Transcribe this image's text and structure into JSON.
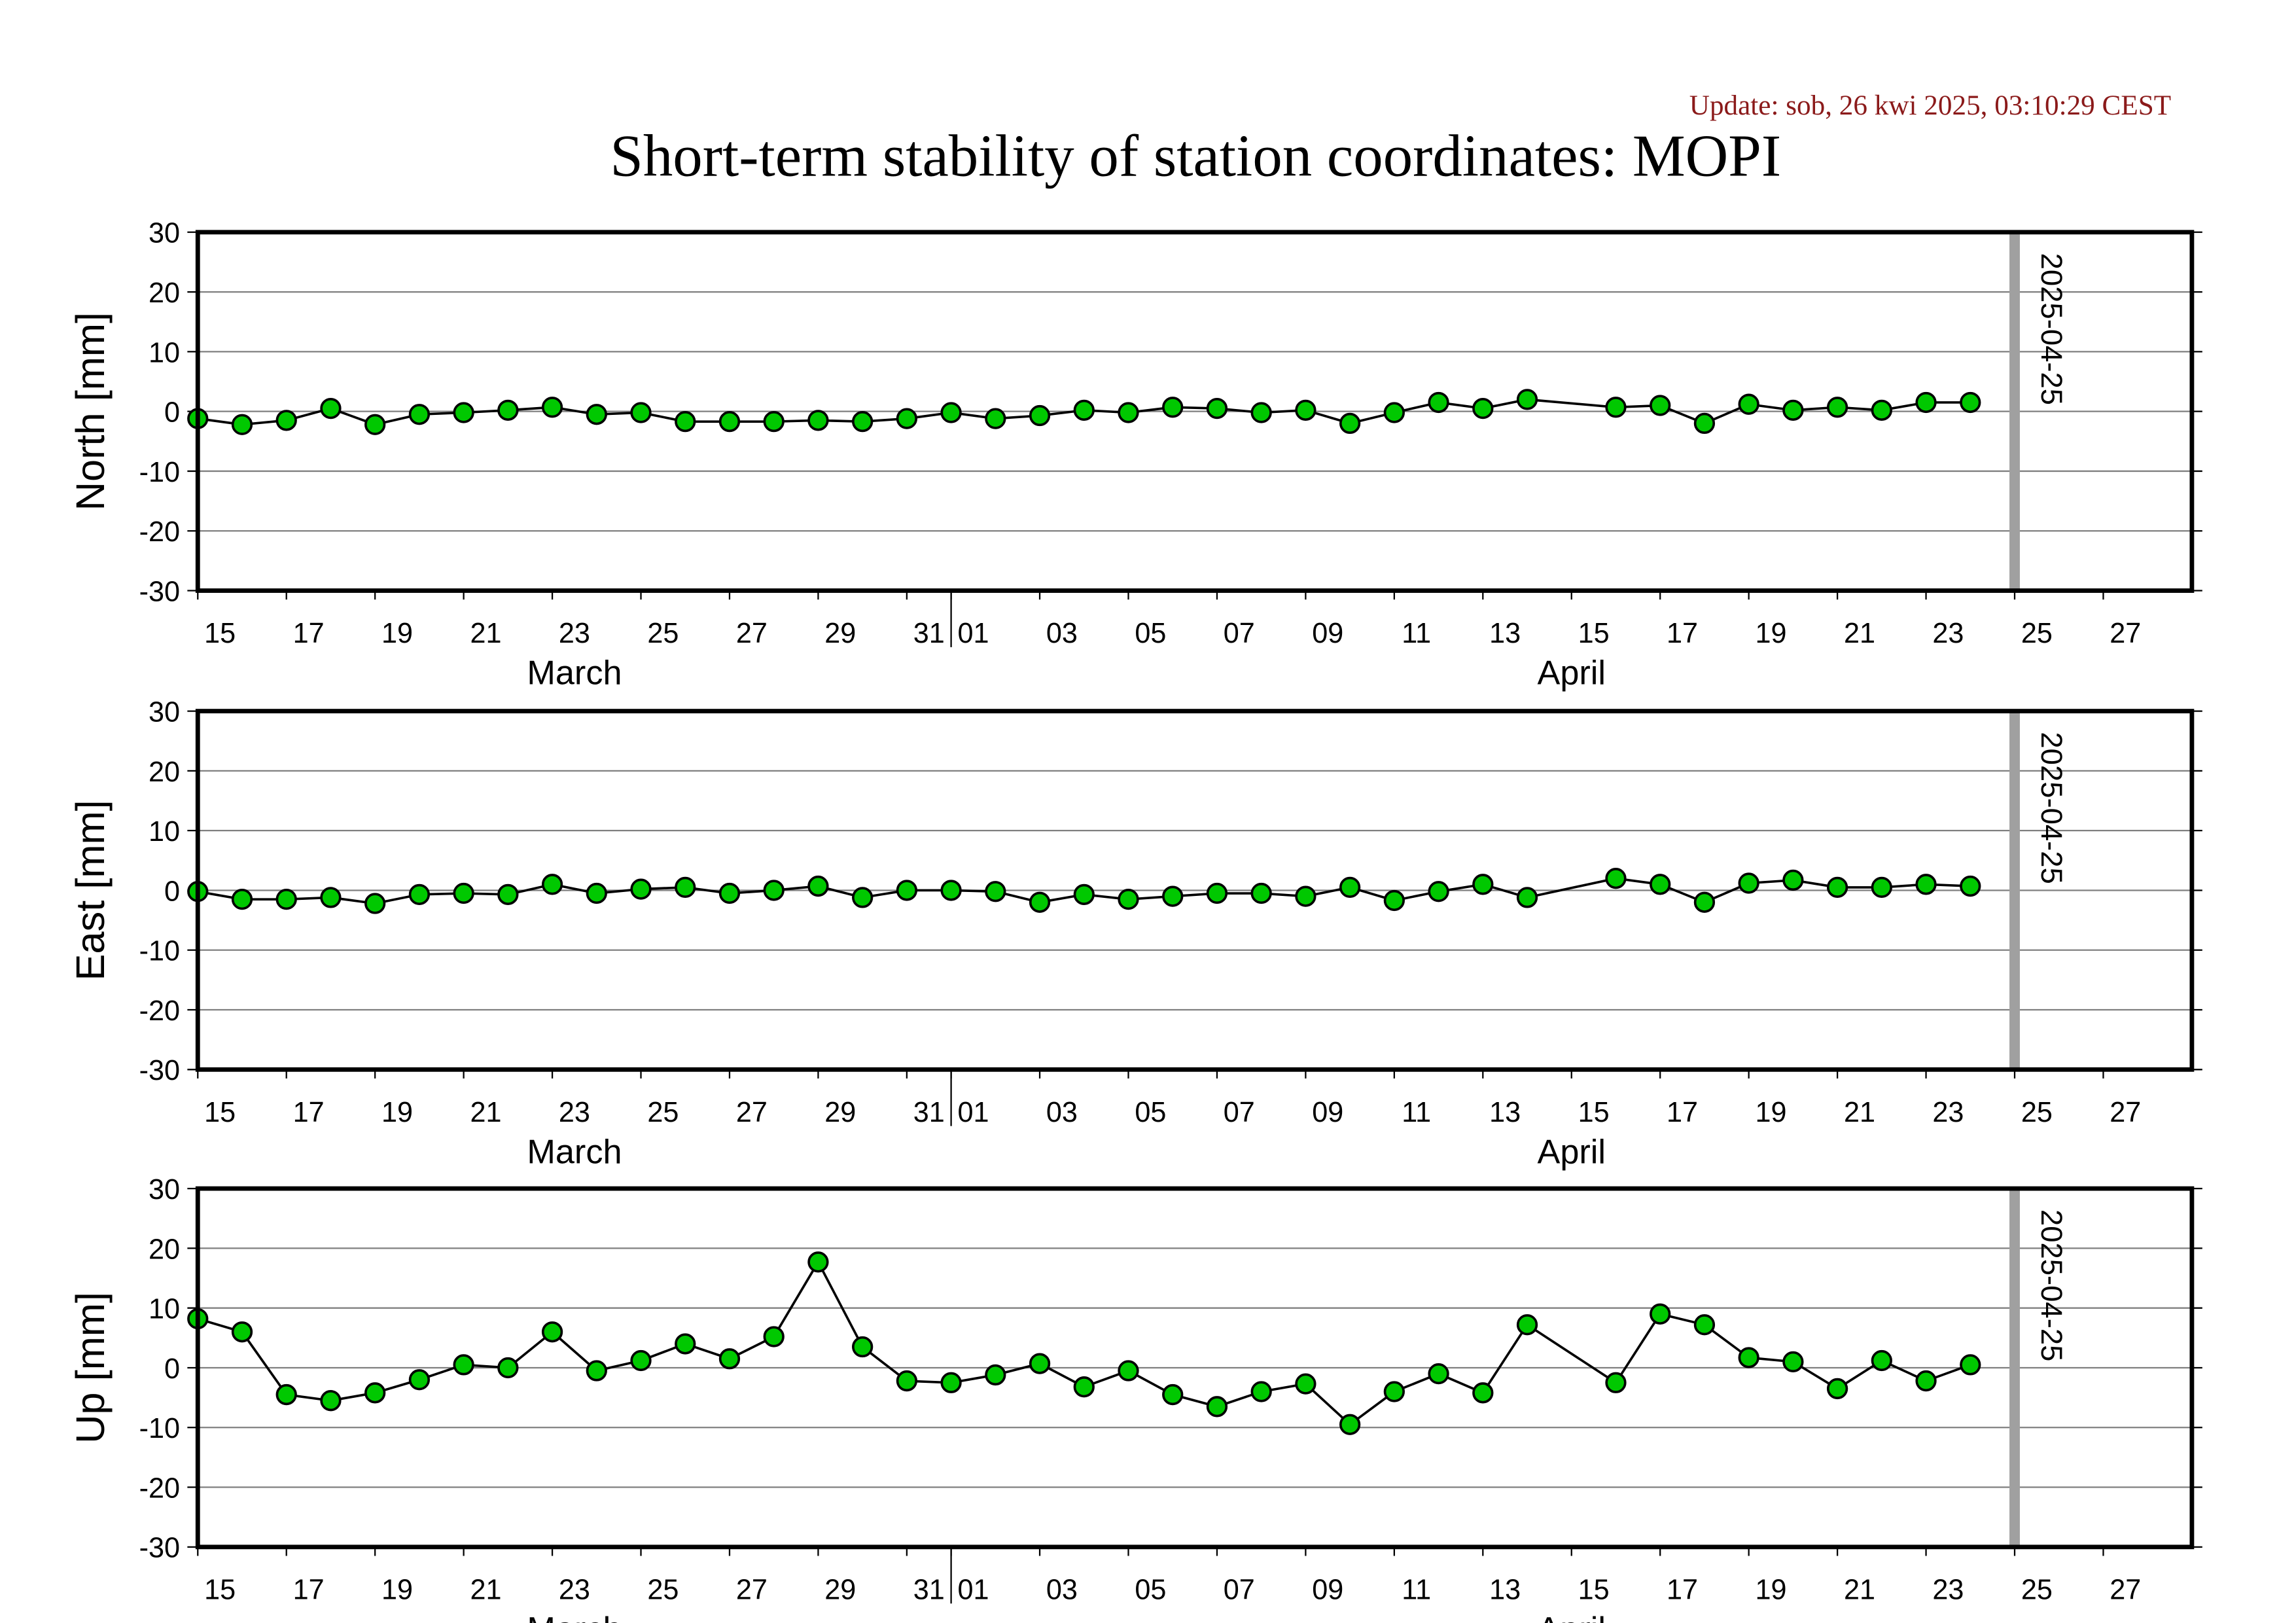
{
  "title": "Short-term stability of station coordinates: MOPI",
  "update": "Update: sob, 26 kwi 2025, 03:10:29 CEST",
  "chart_data": [
    {
      "type": "line",
      "ylabel": "North [mm]",
      "color": "#00c800",
      "x": [
        "2025-03-15",
        "2025-03-16",
        "2025-03-17",
        "2025-03-18",
        "2025-03-19",
        "2025-03-20",
        "2025-03-21",
        "2025-03-22",
        "2025-03-23",
        "2025-03-24",
        "2025-03-25",
        "2025-03-26",
        "2025-03-27",
        "2025-03-28",
        "2025-03-29",
        "2025-03-30",
        "2025-03-31",
        "2025-04-01",
        "2025-04-02",
        "2025-04-03",
        "2025-04-04",
        "2025-04-05",
        "2025-04-06",
        "2025-04-07",
        "2025-04-08",
        "2025-04-09",
        "2025-04-10",
        "2025-04-11",
        "2025-04-12",
        "2025-04-13",
        "2025-04-14",
        "2025-04-16",
        "2025-04-17",
        "2025-04-18",
        "2025-04-19",
        "2025-04-20",
        "2025-04-21",
        "2025-04-22",
        "2025-04-23",
        "2025-04-24"
      ],
      "values": [
        -1.2,
        -2.2,
        -1.5,
        0.5,
        -2.2,
        -0.5,
        -0.2,
        0.2,
        0.7,
        -0.5,
        -0.2,
        -1.7,
        -1.7,
        -1.7,
        -1.5,
        -1.7,
        -1.2,
        -0.2,
        -1.2,
        -0.7,
        0.2,
        -0.2,
        0.7,
        0.5,
        -0.2,
        0.2,
        -2.0,
        -0.2,
        1.5,
        0.5,
        2.0,
        0.7,
        1.0,
        -2.0,
        1.2,
        0.2,
        0.7,
        0.2,
        1.5,
        1.5
      ],
      "xlim": [
        "2025-03-15",
        "2025-04-29"
      ],
      "xticks": [
        {
          "value": "2025-03-15",
          "label": "15"
        },
        {
          "value": "2025-03-17",
          "label": "17"
        },
        {
          "value": "2025-03-19",
          "label": "19"
        },
        {
          "value": "2025-03-21",
          "label": "21"
        },
        {
          "value": "2025-03-23",
          "label": "23"
        },
        {
          "value": "2025-03-25",
          "label": "25"
        },
        {
          "value": "2025-03-27",
          "label": "27"
        },
        {
          "value": "2025-03-29",
          "label": "29"
        },
        {
          "value": "2025-03-31",
          "label": "31"
        },
        {
          "value": "2025-04-01",
          "label": "01"
        },
        {
          "value": "2025-04-03",
          "label": "03"
        },
        {
          "value": "2025-04-05",
          "label": "05"
        },
        {
          "value": "2025-04-07",
          "label": "07"
        },
        {
          "value": "2025-04-09",
          "label": "09"
        },
        {
          "value": "2025-04-11",
          "label": "11"
        },
        {
          "value": "2025-04-13",
          "label": "13"
        },
        {
          "value": "2025-04-15",
          "label": "15"
        },
        {
          "value": "2025-04-17",
          "label": "17"
        },
        {
          "value": "2025-04-19",
          "label": "19"
        },
        {
          "value": "2025-04-21",
          "label": "21"
        },
        {
          "value": "2025-04-23",
          "label": "23"
        },
        {
          "value": "2025-04-25",
          "label": "25"
        },
        {
          "value": "2025-04-27",
          "label": "27"
        }
      ],
      "months": [
        {
          "value": "2025-03-01",
          "label": "March"
        },
        {
          "value": "2025-04-01",
          "label": "April"
        }
      ],
      "vline": "2025-04-25",
      "ylim": [
        -30,
        30
      ],
      "yticks": [
        -30,
        -20,
        -10,
        0,
        10,
        20,
        30
      ],
      "grid": true
    },
    {
      "type": "line",
      "ylabel": "East [mm]",
      "color": "#00c800",
      "x": [
        "2025-03-15",
        "2025-03-16",
        "2025-03-17",
        "2025-03-18",
        "2025-03-19",
        "2025-03-20",
        "2025-03-21",
        "2025-03-22",
        "2025-03-23",
        "2025-03-24",
        "2025-03-25",
        "2025-03-26",
        "2025-03-27",
        "2025-03-28",
        "2025-03-29",
        "2025-03-30",
        "2025-03-31",
        "2025-04-01",
        "2025-04-02",
        "2025-04-03",
        "2025-04-04",
        "2025-04-05",
        "2025-04-06",
        "2025-04-07",
        "2025-04-08",
        "2025-04-09",
        "2025-04-10",
        "2025-04-11",
        "2025-04-12",
        "2025-04-13",
        "2025-04-14",
        "2025-04-16",
        "2025-04-17",
        "2025-04-18",
        "2025-04-19",
        "2025-04-20",
        "2025-04-21",
        "2025-04-22",
        "2025-04-23",
        "2025-04-24"
      ],
      "values": [
        -0.2,
        -1.5,
        -1.5,
        -1.2,
        -2.2,
        -0.7,
        -0.5,
        -0.7,
        1.0,
        -0.5,
        0.2,
        0.5,
        -0.5,
        0,
        0.7,
        -1.2,
        0,
        0,
        -0.2,
        -2.0,
        -0.7,
        -1.5,
        -1.0,
        -0.5,
        -0.5,
        -1.0,
        0.5,
        -1.7,
        -0.2,
        1.0,
        -1.2,
        2.0,
        1.0,
        -2.0,
        1.2,
        1.7,
        0.5,
        0.5,
        1.0,
        0.7
      ],
      "xlim": [
        "2025-03-15",
        "2025-04-29"
      ],
      "xticks": [
        {
          "value": "2025-03-15",
          "label": "15"
        },
        {
          "value": "2025-03-17",
          "label": "17"
        },
        {
          "value": "2025-03-19",
          "label": "19"
        },
        {
          "value": "2025-03-21",
          "label": "21"
        },
        {
          "value": "2025-03-23",
          "label": "23"
        },
        {
          "value": "2025-03-25",
          "label": "25"
        },
        {
          "value": "2025-03-27",
          "label": "27"
        },
        {
          "value": "2025-03-29",
          "label": "29"
        },
        {
          "value": "2025-03-31",
          "label": "31"
        },
        {
          "value": "2025-04-01",
          "label": "01"
        },
        {
          "value": "2025-04-03",
          "label": "03"
        },
        {
          "value": "2025-04-05",
          "label": "05"
        },
        {
          "value": "2025-04-07",
          "label": "07"
        },
        {
          "value": "2025-04-09",
          "label": "09"
        },
        {
          "value": "2025-04-11",
          "label": "11"
        },
        {
          "value": "2025-04-13",
          "label": "13"
        },
        {
          "value": "2025-04-15",
          "label": "15"
        },
        {
          "value": "2025-04-17",
          "label": "17"
        },
        {
          "value": "2025-04-19",
          "label": "19"
        },
        {
          "value": "2025-04-21",
          "label": "21"
        },
        {
          "value": "2025-04-23",
          "label": "23"
        },
        {
          "value": "2025-04-25",
          "label": "25"
        },
        {
          "value": "2025-04-27",
          "label": "27"
        }
      ],
      "months": [
        {
          "value": "2025-03-01",
          "label": "March"
        },
        {
          "value": "2025-04-01",
          "label": "April"
        }
      ],
      "vline": "2025-04-25",
      "ylim": [
        -30,
        30
      ],
      "yticks": [
        -30,
        -20,
        -10,
        0,
        10,
        20,
        30
      ],
      "grid": true
    },
    {
      "type": "line",
      "ylabel": "Up [mm]",
      "color": "#00c800",
      "x": [
        "2025-03-15",
        "2025-03-16",
        "2025-03-17",
        "2025-03-18",
        "2025-03-19",
        "2025-03-20",
        "2025-03-21",
        "2025-03-22",
        "2025-03-23",
        "2025-03-24",
        "2025-03-25",
        "2025-03-26",
        "2025-03-27",
        "2025-03-28",
        "2025-03-29",
        "2025-03-30",
        "2025-03-31",
        "2025-04-01",
        "2025-04-02",
        "2025-04-03",
        "2025-04-04",
        "2025-04-05",
        "2025-04-06",
        "2025-04-07",
        "2025-04-08",
        "2025-04-09",
        "2025-04-10",
        "2025-04-11",
        "2025-04-12",
        "2025-04-13",
        "2025-04-14",
        "2025-04-16",
        "2025-04-17",
        "2025-04-18",
        "2025-04-19",
        "2025-04-20",
        "2025-04-21",
        "2025-04-22",
        "2025-04-23",
        "2025-04-24"
      ],
      "values": [
        8.2,
        6.0,
        -4.5,
        -5.5,
        -4.2,
        -2.0,
        0.5,
        0,
        6.0,
        -0.5,
        1.2,
        4.0,
        1.5,
        5.2,
        17.7,
        3.5,
        -2.2,
        -2.5,
        -1.2,
        0.7,
        -3.2,
        -0.5,
        -4.5,
        -6.5,
        -4.0,
        -2.7,
        -9.5,
        -4.0,
        -1.0,
        -4.2,
        7.2,
        -2.5,
        9.0,
        7.2,
        1.7,
        1.0,
        -3.5,
        1.2,
        -2.2,
        0.5
      ],
      "xlim": [
        "2025-03-15",
        "2025-04-29"
      ],
      "xticks": [
        {
          "value": "2025-03-15",
          "label": "15"
        },
        {
          "value": "2025-03-17",
          "label": "17"
        },
        {
          "value": "2025-03-19",
          "label": "19"
        },
        {
          "value": "2025-03-21",
          "label": "21"
        },
        {
          "value": "2025-03-23",
          "label": "23"
        },
        {
          "value": "2025-03-25",
          "label": "25"
        },
        {
          "value": "2025-03-27",
          "label": "27"
        },
        {
          "value": "2025-03-29",
          "label": "29"
        },
        {
          "value": "2025-03-31",
          "label": "31"
        },
        {
          "value": "2025-04-01",
          "label": "01"
        },
        {
          "value": "2025-04-03",
          "label": "03"
        },
        {
          "value": "2025-04-05",
          "label": "05"
        },
        {
          "value": "2025-04-07",
          "label": "07"
        },
        {
          "value": "2025-04-09",
          "label": "09"
        },
        {
          "value": "2025-04-11",
          "label": "11"
        },
        {
          "value": "2025-04-13",
          "label": "13"
        },
        {
          "value": "2025-04-15",
          "label": "15"
        },
        {
          "value": "2025-04-17",
          "label": "17"
        },
        {
          "value": "2025-04-19",
          "label": "19"
        },
        {
          "value": "2025-04-21",
          "label": "21"
        },
        {
          "value": "2025-04-23",
          "label": "23"
        },
        {
          "value": "2025-04-25",
          "label": "25"
        },
        {
          "value": "2025-04-27",
          "label": "27"
        }
      ],
      "months": [
        {
          "value": "2025-03-01",
          "label": "March"
        },
        {
          "value": "2025-04-01",
          "label": "April"
        }
      ],
      "vline": "2025-04-25",
      "ylim": [
        -30,
        30
      ],
      "yticks": [
        -30,
        -20,
        -10,
        0,
        10,
        20,
        30
      ],
      "grid": true
    }
  ]
}
